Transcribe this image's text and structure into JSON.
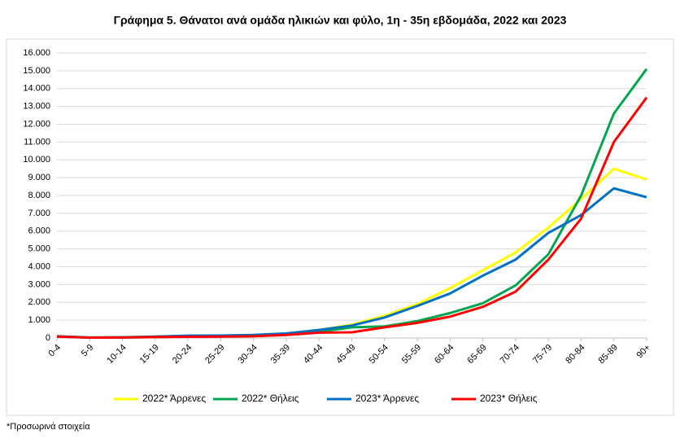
{
  "chart_data": {
    "type": "line",
    "title": "Γράφημα 5. Θάνατοι ανά ομάδα ηλικιών και φύλο, 1η - 35η εβδομάδα, 2022 και 2023",
    "footnote": "*Προσωρινά στοιχεία",
    "categories": [
      "0-4",
      "5-9",
      "10-14",
      "15-19",
      "20-24",
      "25-29",
      "30-34",
      "35-39",
      "40-44",
      "45-49",
      "50-54",
      "55-59",
      "60-64",
      "65-69",
      "70-74",
      "75-79",
      "80-84",
      "85-89",
      "90+"
    ],
    "series": [
      {
        "name": "2022* Άρρενες",
        "color": "#ffff00",
        "values": [
          100,
          30,
          40,
          80,
          120,
          130,
          160,
          250,
          450,
          750,
          1250,
          1900,
          2800,
          3800,
          4800,
          6200,
          7800,
          9500,
          8900
        ]
      },
      {
        "name": "2022* Θήλεις",
        "color": "#00a550",
        "values": [
          80,
          20,
          30,
          50,
          80,
          90,
          110,
          180,
          350,
          600,
          650,
          950,
          1400,
          1950,
          2950,
          4700,
          8000,
          12600,
          15100
        ]
      },
      {
        "name": "2023* Άρρενες",
        "color": "#0070c0",
        "values": [
          100,
          30,
          40,
          80,
          130,
          140,
          170,
          260,
          450,
          700,
          1150,
          1800,
          2500,
          3500,
          4400,
          5900,
          6900,
          8400,
          7900
        ]
      },
      {
        "name": "2023* Θήλεις",
        "color": "#ff0000",
        "values": [
          80,
          20,
          30,
          50,
          70,
          80,
          100,
          170,
          300,
          320,
          600,
          850,
          1200,
          1750,
          2600,
          4400,
          6700,
          11000,
          13500
        ]
      }
    ],
    "ylim": [
      0,
      16000
    ],
    "yticks": [
      0,
      {
        "value": 1000,
        "label": "1.000"
      },
      {
        "value": 2000,
        "label": "2.000"
      },
      {
        "value": 3000,
        "label": "3.000"
      },
      {
        "value": 4000,
        "label": "4.000"
      },
      {
        "value": 5000,
        "label": "5.000"
      },
      {
        "value": 6000,
        "label": "6.000"
      },
      {
        "value": 7000,
        "label": "7.000"
      },
      {
        "value": 8000,
        "label": "8.000"
      },
      {
        "value": 9000,
        "label": "9.000"
      },
      {
        "value": 10000,
        "label": "10.000"
      },
      {
        "value": 11000,
        "label": "11.000"
      },
      {
        "value": 12000,
        "label": "12.000"
      },
      {
        "value": 13000,
        "label": "13.000"
      },
      {
        "value": 14000,
        "label": "14.000"
      },
      {
        "value": 15000,
        "label": "15.000"
      },
      {
        "value": 16000,
        "label": "16.000"
      }
    ],
    "grid": true
  }
}
